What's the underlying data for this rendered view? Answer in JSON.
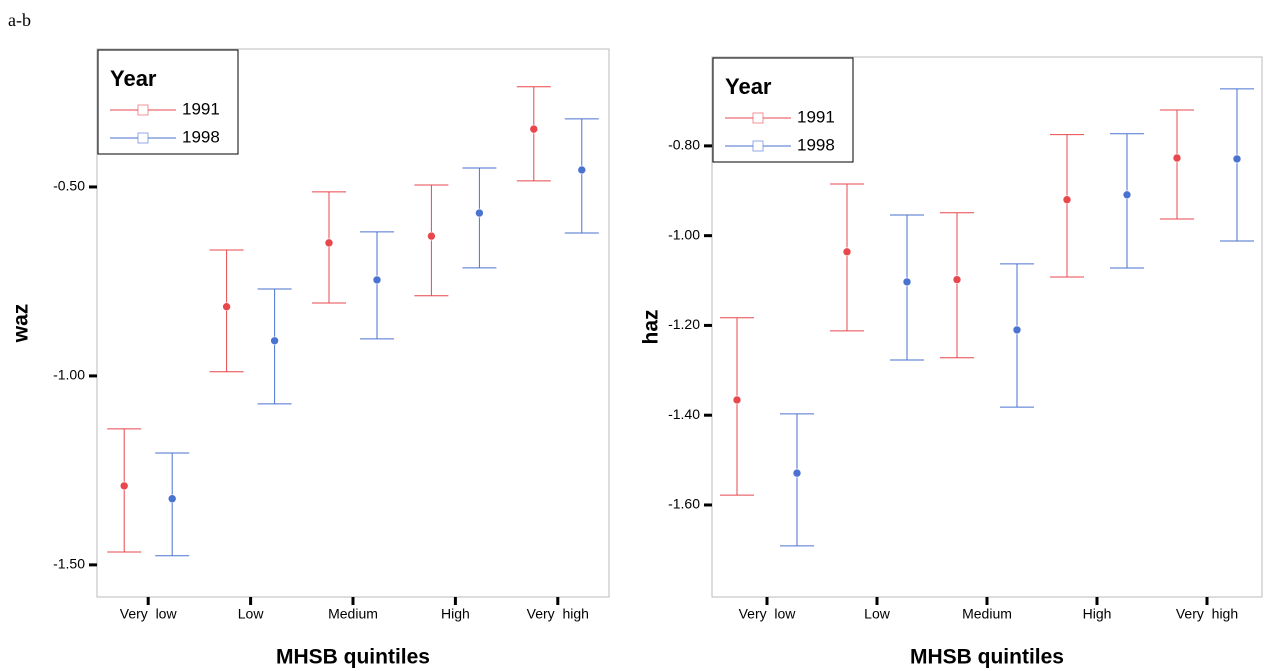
{
  "figure_label": "a-b",
  "chart_data": [
    {
      "type": "errorbar",
      "x_label": "MHSB quintiles",
      "y_label": "waz",
      "legend_title": "Year",
      "legend": "upper left",
      "categories": [
        "Very  low",
        "Low",
        "Medium",
        "High",
        "Very  high"
      ],
      "ylim": [
        -1.585,
        -0.135
      ],
      "yticks": [
        {
          "value": -1.5,
          "label": "-1.50"
        },
        {
          "value": -1.0,
          "label": "-1.00"
        },
        {
          "value": -0.5,
          "label": "-0.50"
        }
      ],
      "series": [
        {
          "name": "1991",
          "color": "#e8474c",
          "values": [
            -1.291,
            -0.817,
            -0.648,
            -0.63,
            -0.347
          ],
          "lower": [
            -1.466,
            -0.989,
            -0.807,
            -0.788,
            -0.484
          ],
          "upper": [
            -1.14,
            -0.667,
            -0.513,
            -0.495,
            -0.235
          ]
        },
        {
          "name": "1998",
          "color": "#4a72d0",
          "values": [
            -1.325,
            -0.907,
            -0.746,
            -0.569,
            -0.455
          ],
          "lower": [
            -1.476,
            -1.074,
            -0.902,
            -0.714,
            -0.622
          ],
          "upper": [
            -1.204,
            -0.77,
            -0.619,
            -0.45,
            -0.32
          ]
        }
      ]
    },
    {
      "type": "errorbar",
      "x_label": "MHSB quintiles",
      "y_label": "haz",
      "legend_title": "Year",
      "legend": "upper left",
      "categories": [
        "Very  low",
        "Low",
        "Medium",
        "High",
        "Very  high"
      ],
      "ylim": [
        -1.805,
        -0.602
      ],
      "yticks": [
        {
          "value": -1.6,
          "label": "-1.60"
        },
        {
          "value": -1.4,
          "label": "-1.40"
        },
        {
          "value": -1.2,
          "label": "-1.20"
        },
        {
          "value": -1.0,
          "label": "-1.00"
        },
        {
          "value": -0.8,
          "label": "-0.80"
        }
      ],
      "series": [
        {
          "name": "1991",
          "color": "#e8474c",
          "values": [
            -1.366,
            -1.036,
            -1.098,
            -0.92,
            -0.827
          ],
          "lower": [
            -1.578,
            -1.212,
            -1.272,
            -1.092,
            -0.963
          ],
          "upper": [
            -1.183,
            -0.885,
            -0.949,
            -0.775,
            -0.72
          ]
        },
        {
          "name": "1998",
          "color": "#4a72d0",
          "values": [
            -1.529,
            -1.103,
            -1.21,
            -0.909,
            -0.829
          ],
          "lower": [
            -1.691,
            -1.277,
            -1.382,
            -1.072,
            -1.012
          ],
          "upper": [
            -1.397,
            -0.954,
            -1.063,
            -0.773,
            -0.673
          ]
        }
      ]
    }
  ]
}
